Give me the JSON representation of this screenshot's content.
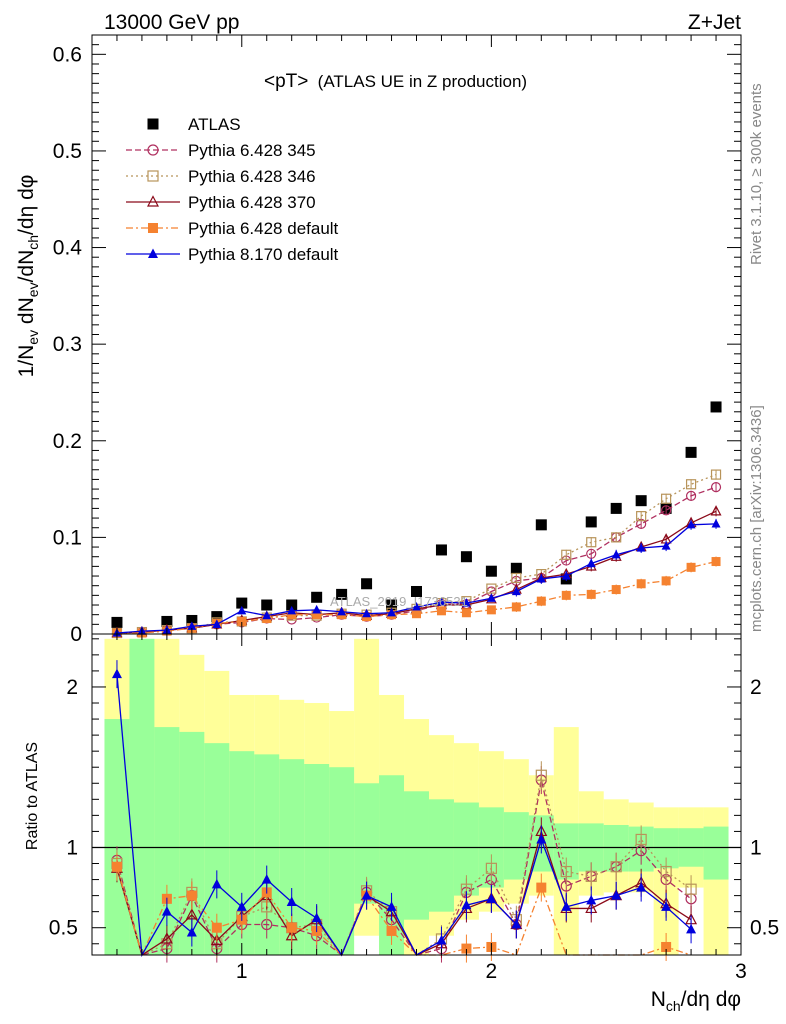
{
  "header": {
    "left": "13000 GeV pp",
    "right": "Z+Jet",
    "side_top": "Rivet 3.1.10, ≥ 300k events",
    "side_bottom": "mcplots.cern.ch [arXiv:1306.3436]",
    "watermark": "ATLAS_2019_I1736531"
  },
  "chart_data": [
    {
      "type": "scatter",
      "title": "<pT> (ATLAS UE in Z production)",
      "title_main": "<pT>",
      "title_sub": "(ATLAS UE in Z production)",
      "ylabel": "1/N_ev dN_ev/dN_ch/dη dφ",
      "xlim": [
        0.4,
        3.0
      ],
      "ylim": [
        0,
        0.62
      ],
      "yticks": [
        0,
        0.1,
        0.2,
        0.3,
        0.4,
        0.5,
        0.6
      ],
      "ytick_labels": [
        "0",
        "0.1",
        "0.2",
        "0.3",
        "0.4",
        "0.5",
        "0.6"
      ],
      "legend_position": "top-left",
      "x": [
        0.5,
        0.6,
        0.7,
        0.8,
        0.9,
        1.0,
        1.1,
        1.2,
        1.3,
        1.4,
        1.5,
        1.6,
        1.7,
        1.8,
        1.9,
        2.0,
        2.1,
        2.2,
        2.3,
        2.4,
        2.5,
        2.6,
        2.7,
        2.8,
        2.9
      ],
      "series": [
        {
          "name": "ATLAS",
          "color": "#000000",
          "marker": "square-filled",
          "line": "none",
          "values": [
            0.012,
            0.0,
            0.013,
            0.014,
            0.018,
            0.032,
            0.03,
            0.03,
            0.038,
            0.041,
            0.052,
            0.03,
            0.044,
            0.087,
            0.08,
            0.065,
            0.068,
            0.113,
            0.057,
            0.116,
            0.13,
            0.138,
            0.13,
            0.188,
            0.235
          ]
        },
        {
          "name": "Pythia 6.428 345",
          "color": "#b03060",
          "marker": "circle-open",
          "line": "dashed",
          "values": [
            0.001,
            0.002,
            0.004,
            0.006,
            0.01,
            0.012,
            0.016,
            0.015,
            0.017,
            0.02,
            0.018,
            0.02,
            0.024,
            0.031,
            0.031,
            0.044,
            0.055,
            0.058,
            0.076,
            0.083,
            0.1,
            0.114,
            0.128,
            0.143,
            0.152
          ]
        },
        {
          "name": "Pythia 6.428 346",
          "color": "#b8945a",
          "marker": "square-open",
          "line": "dotted",
          "values": [
            0.001,
            0.002,
            0.004,
            0.006,
            0.012,
            0.013,
            0.017,
            0.019,
            0.019,
            0.021,
            0.02,
            0.022,
            0.026,
            0.032,
            0.034,
            0.047,
            0.058,
            0.062,
            0.082,
            0.095,
            0.1,
            0.122,
            0.14,
            0.155,
            0.165
          ]
        },
        {
          "name": "Pythia 6.428 370",
          "color": "#8b0a1a",
          "marker": "triangle-open",
          "line": "solid",
          "values": [
            0.001,
            0.002,
            0.004,
            0.006,
            0.01,
            0.014,
            0.018,
            0.022,
            0.02,
            0.022,
            0.019,
            0.021,
            0.026,
            0.03,
            0.03,
            0.036,
            0.046,
            0.058,
            0.062,
            0.07,
            0.08,
            0.09,
            0.098,
            0.115,
            0.127
          ]
        },
        {
          "name": "Pythia 6.428 default",
          "color": "#f58230",
          "marker": "square-filled",
          "line": "dashdot",
          "values": [
            0.001,
            0.001,
            0.003,
            0.006,
            0.011,
            0.013,
            0.016,
            0.02,
            0.02,
            0.02,
            0.018,
            0.02,
            0.021,
            0.024,
            0.022,
            0.025,
            0.028,
            0.034,
            0.04,
            0.041,
            0.046,
            0.052,
            0.055,
            0.069,
            0.075
          ]
        },
        {
          "name": "Pythia 8.170 default",
          "color": "#0000dd",
          "marker": "triangle-filled",
          "line": "solid",
          "values": [
            0.001,
            0.003,
            0.004,
            0.008,
            0.01,
            0.024,
            0.019,
            0.024,
            0.025,
            0.023,
            0.021,
            0.022,
            0.028,
            0.033,
            0.032,
            0.037,
            0.044,
            0.057,
            0.06,
            0.073,
            0.082,
            0.089,
            0.091,
            0.113,
            0.114
          ]
        }
      ]
    },
    {
      "type": "scatter",
      "ylabel": "Ratio to ATLAS",
      "xlabel": "N_ch/dη dφ",
      "xlim": [
        0.4,
        3.0
      ],
      "ylim": [
        0.33,
        2.33
      ],
      "yticks": [
        0.5,
        1,
        2
      ],
      "ytick_labels": [
        "0.5",
        "1",
        "2"
      ],
      "xticks": [
        1,
        2,
        3
      ],
      "xtick_labels": [
        "1",
        "2",
        "3"
      ],
      "x": [
        0.5,
        0.6,
        0.7,
        0.8,
        0.9,
        1.0,
        1.1,
        1.2,
        1.3,
        1.4,
        1.5,
        1.6,
        1.7,
        1.8,
        1.9,
        2.0,
        2.1,
        2.2,
        2.3,
        2.4,
        2.5,
        2.6,
        2.7,
        2.8,
        2.9
      ],
      "bands": {
        "inner_color": "#99ff99",
        "outer_color": "#ffff99",
        "inner_lo": [
          0.33,
          0.33,
          0.33,
          0.33,
          0.33,
          0.33,
          0.33,
          0.33,
          0.33,
          0.33,
          0.65,
          0.33,
          0.55,
          0.6,
          0.7,
          0.75,
          0.8,
          0.85,
          0.8,
          0.85,
          0.85,
          0.85,
          0.87,
          0.88,
          0.8
        ],
        "inner_hi": [
          1.8,
          2.3,
          1.75,
          1.72,
          1.65,
          1.6,
          1.58,
          1.55,
          1.52,
          1.5,
          1.4,
          1.45,
          1.35,
          1.3,
          1.28,
          1.25,
          1.22,
          1.2,
          1.15,
          1.15,
          1.14,
          1.13,
          1.12,
          1.12,
          1.13
        ],
        "outer_lo": [
          0.33,
          0.33,
          0.33,
          0.33,
          0.33,
          0.33,
          0.33,
          0.33,
          0.33,
          0.33,
          0.45,
          0.33,
          0.33,
          0.45,
          0.55,
          0.6,
          0.65,
          0.7,
          0.33,
          0.7,
          0.72,
          0.72,
          0.33,
          0.75,
          0.33
        ],
        "outer_hi": [
          2.3,
          2.3,
          2.3,
          2.2,
          2.1,
          1.95,
          1.95,
          1.92,
          1.9,
          1.85,
          2.3,
          1.95,
          1.8,
          1.7,
          1.65,
          1.6,
          1.55,
          1.45,
          1.75,
          1.35,
          1.3,
          1.28,
          1.25,
          1.25,
          1.25
        ]
      },
      "series": [
        {
          "name": "Pythia 6.428 345",
          "values": [
            0.92,
            0.33,
            0.37,
            0.7,
            0.37,
            0.52,
            0.52,
            0.5,
            0.45,
            0.33,
            0.72,
            0.55,
            0.33,
            0.37,
            0.72,
            0.8,
            0.52,
            1.42,
            0.76,
            0.82,
            0.88,
            0.98,
            0.8,
            0.68,
            null
          ]
        },
        {
          "name": "Pythia 6.428 346",
          "values": [
            0.9,
            0.33,
            0.4,
            0.72,
            0.4,
            0.57,
            0.63,
            0.5,
            0.52,
            0.33,
            0.73,
            0.6,
            0.33,
            0.43,
            0.74,
            0.87,
            0.55,
            1.45,
            0.85,
            0.82,
            0.88,
            1.05,
            0.85,
            0.74,
            null
          ]
        },
        {
          "name": "Pythia 6.428 370",
          "values": [
            0.87,
            0.33,
            0.43,
            0.58,
            0.42,
            0.57,
            0.7,
            0.45,
            0.55,
            0.33,
            0.7,
            0.6,
            0.33,
            0.4,
            0.62,
            0.68,
            0.52,
            1.1,
            0.62,
            0.62,
            0.7,
            0.78,
            0.65,
            0.55,
            null
          ]
        },
        {
          "name": "Pythia 6.428 default",
          "values": [
            0.88,
            0.33,
            0.68,
            0.7,
            0.5,
            0.55,
            0.72,
            0.5,
            0.48,
            0.33,
            0.7,
            0.48,
            0.33,
            0.33,
            0.37,
            0.38,
            0.33,
            0.75,
            0.33,
            0.33,
            0.33,
            0.33,
            0.38,
            0.33,
            null
          ]
        },
        {
          "name": "Pythia 8.170 default",
          "values": [
            2.08,
            0.33,
            0.6,
            0.47,
            0.77,
            0.63,
            0.8,
            0.66,
            0.56,
            0.33,
            0.7,
            0.63,
            0.33,
            0.42,
            0.64,
            0.68,
            0.52,
            1.05,
            0.63,
            0.67,
            0.7,
            0.75,
            0.63,
            0.49,
            null
          ]
        }
      ]
    }
  ]
}
